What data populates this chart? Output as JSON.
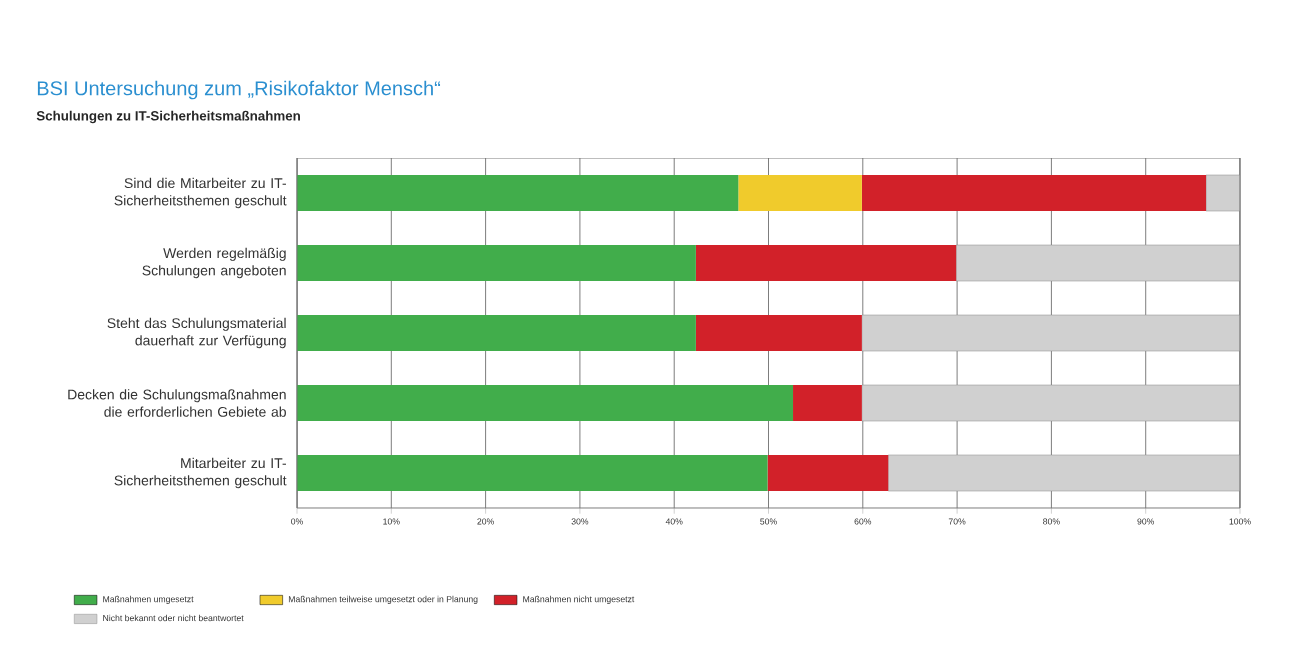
{
  "chart_data": {
    "type": "bar",
    "orientation": "horizontal",
    "stacked": true,
    "title": "BSI Untersuchung zum „Risikofaktor Mensch“",
    "subtitle": "Schulungen zu IT-Sicherheitsmaßnahmen",
    "categories": [
      "Sind die Mitarbeiter zu IT-Sicherheitsthemen geschult",
      "Werden regelmäßig Schulungen angeboten",
      "Steht das Schulungsmaterial dauerhaft zur Verfügung",
      "Decken die Schulungsmaßnahmen die erforderlichen Gebiete ab",
      "Mitarbeiter zu IT-Sicherheitsthemen geschult"
    ],
    "series": [
      {
        "name": "Maßnahmen umgesetzt",
        "color": "#41ad4b",
        "values": [
          46.8,
          42.3,
          42.3,
          52.6,
          49.9
        ]
      },
      {
        "name": "Maßnahmen teilweise umgesetzt oder in Planung",
        "color": "#f0cb2c",
        "values": [
          13.1,
          0,
          0,
          0,
          0
        ]
      },
      {
        "name": "Maßnahmen nicht umgesetzt",
        "color": "#d22129",
        "values": [
          36.5,
          27.6,
          17.6,
          7.3,
          12.8
        ]
      },
      {
        "name": "Nicht bekannt oder nicht beantwortet",
        "color": "#d0d0d0",
        "values": [
          3.6,
          30.1,
          40.1,
          40.1,
          37.3
        ]
      }
    ],
    "xlim": [
      0,
      100
    ],
    "xticks": [
      {
        "value": 0,
        "label": "0%"
      },
      {
        "value": 10,
        "label": "10%"
      },
      {
        "value": 20,
        "label": "20%"
      },
      {
        "value": 30,
        "label": "30%"
      },
      {
        "value": 40,
        "label": "40%"
      },
      {
        "value": 50,
        "label": "50%"
      },
      {
        "value": 60,
        "label": "60%"
      },
      {
        "value": 70,
        "label": "70%"
      },
      {
        "value": 80,
        "label": "80%"
      },
      {
        "value": 90,
        "label": "90%"
      },
      {
        "value": 100,
        "label": "100%"
      }
    ],
    "grid": "x",
    "legend": "bottom left"
  }
}
